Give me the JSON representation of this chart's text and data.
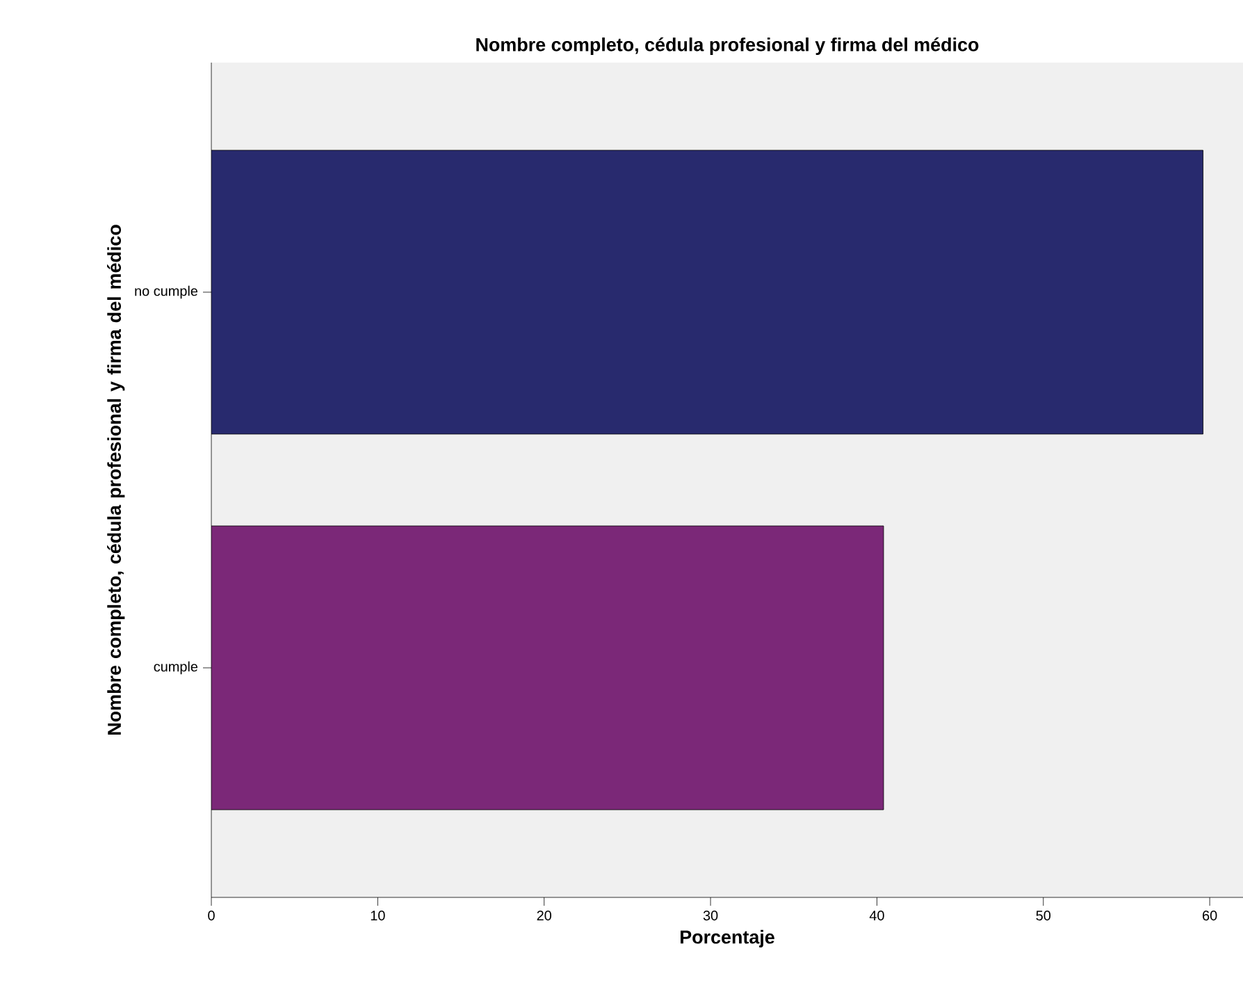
{
  "chart_data": {
    "type": "bar",
    "orientation": "horizontal",
    "title": "Nombre completo, cédula profesional y firma del médico",
    "xlabel": "Porcentaje",
    "ylabel": "Nombre completo, cédula profesional y firma del médico",
    "categories": [
      "no cumple",
      "cumple"
    ],
    "values": [
      59.6,
      40.4
    ],
    "colors": [
      "#282a6e",
      "#7b2878"
    ],
    "xlim": [
      0,
      62
    ],
    "xticks": [
      0,
      10,
      20,
      30,
      40,
      50,
      60
    ],
    "grid": false
  }
}
